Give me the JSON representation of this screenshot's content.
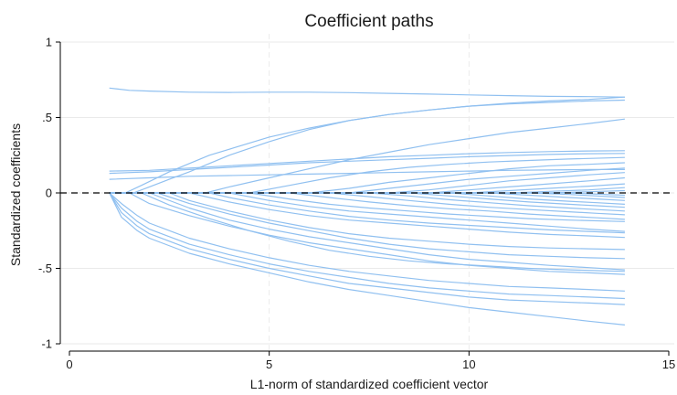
{
  "chart_data": {
    "type": "line",
    "title": "Coefficient paths",
    "xlabel": "L1-norm of standardized coefficient vector",
    "ylabel": "Standardized coefficients",
    "xlim": [
      0,
      15
    ],
    "ylim": [
      -1,
      1
    ],
    "x_ticks": [
      0,
      5,
      10,
      15
    ],
    "y_ticks": [
      -1,
      -0.5,
      0,
      0.5,
      1
    ],
    "x_tick_labels": [
      "0",
      "5",
      "10",
      "15"
    ],
    "y_tick_labels": [
      "-1",
      "-.5",
      "0",
      ".5",
      "1"
    ],
    "grid": true,
    "reference_line_y": 0,
    "line_color": "#90c0f0",
    "series": [
      {
        "x": [
          1.0,
          1.5,
          2,
          3,
          4,
          5,
          6,
          7,
          8,
          9,
          10,
          11,
          12,
          13,
          13.9
        ],
        "y": [
          0.695,
          0.68,
          0.675,
          0.668,
          0.666,
          0.668,
          0.668,
          0.665,
          0.66,
          0.655,
          0.65,
          0.645,
          0.64,
          0.638,
          0.635
        ]
      },
      {
        "x": [
          1.0,
          1.4,
          1.8,
          2.5,
          3.5,
          5,
          6,
          7,
          8,
          9,
          10,
          11,
          12,
          13,
          13.9
        ],
        "y": [
          0,
          0,
          0.05,
          0.14,
          0.25,
          0.37,
          0.43,
          0.48,
          0.52,
          0.55,
          0.575,
          0.59,
          0.6,
          0.61,
          0.615
        ]
      },
      {
        "x": [
          1.0,
          1.6,
          2,
          2.5,
          3,
          4,
          5,
          6,
          7,
          8,
          9,
          10,
          11,
          12,
          13,
          13.9
        ],
        "y": [
          0,
          0,
          0.04,
          0.09,
          0.14,
          0.25,
          0.34,
          0.42,
          0.48,
          0.52,
          0.55,
          0.575,
          0.595,
          0.61,
          0.62,
          0.635
        ]
      },
      {
        "x": [
          1.0,
          3.4,
          4,
          5,
          6,
          7,
          8,
          9,
          10,
          11,
          12,
          13,
          13.9
        ],
        "y": [
          0,
          0,
          0.04,
          0.1,
          0.16,
          0.22,
          0.27,
          0.32,
          0.36,
          0.4,
          0.43,
          0.46,
          0.49
        ]
      },
      {
        "x": [
          1.0,
          2,
          3,
          4,
          5,
          6,
          7,
          8,
          9,
          10,
          11,
          12,
          13,
          13.9
        ],
        "y": [
          0.145,
          0.15,
          0.165,
          0.18,
          0.195,
          0.21,
          0.225,
          0.24,
          0.25,
          0.26,
          0.268,
          0.274,
          0.278,
          0.28
        ]
      },
      {
        "x": [
          1.0,
          2,
          3,
          4,
          5,
          6,
          7,
          8,
          9,
          10,
          11,
          12,
          13,
          13.9
        ],
        "y": [
          0.13,
          0.14,
          0.155,
          0.17,
          0.185,
          0.2,
          0.21,
          0.22,
          0.23,
          0.24,
          0.248,
          0.255,
          0.26,
          0.262
        ]
      },
      {
        "x": [
          1.0,
          2,
          3,
          4,
          5,
          6,
          7,
          8,
          9,
          10,
          11,
          12,
          13,
          13.9
        ],
        "y": [
          0.09,
          0.1,
          0.11,
          0.115,
          0.12,
          0.125,
          0.13,
          0.135,
          0.14,
          0.145,
          0.15,
          0.152,
          0.155,
          0.155
        ]
      },
      {
        "x": [
          1.0,
          4.5,
          5.5,
          6.5,
          7.5,
          8.5,
          9.5,
          10.5,
          11.5,
          12.5,
          13.9
        ],
        "y": [
          0,
          0,
          0.05,
          0.1,
          0.14,
          0.17,
          0.19,
          0.205,
          0.215,
          0.225,
          0.235
        ]
      },
      {
        "x": [
          1.0,
          6,
          7,
          8,
          9,
          10,
          11,
          12,
          13,
          13.9
        ],
        "y": [
          0,
          0,
          0.03,
          0.07,
          0.1,
          0.13,
          0.16,
          0.18,
          0.19,
          0.2
        ]
      },
      {
        "x": [
          1.0,
          7,
          8,
          9,
          10,
          11,
          12,
          13,
          13.9
        ],
        "y": [
          0,
          0,
          0.03,
          0.06,
          0.09,
          0.11,
          0.13,
          0.15,
          0.165
        ]
      },
      {
        "x": [
          1.0,
          8,
          9,
          10,
          11,
          12,
          13,
          13.9
        ],
        "y": [
          0,
          0,
          0.02,
          0.05,
          0.08,
          0.1,
          0.12,
          0.135
        ]
      },
      {
        "x": [
          1.0,
          9,
          10,
          11,
          12,
          13,
          13.9
        ],
        "y": [
          0,
          0,
          0.02,
          0.04,
          0.06,
          0.08,
          0.1
        ]
      },
      {
        "x": [
          1.0,
          10,
          11,
          12,
          13,
          13.9
        ],
        "y": [
          0,
          0,
          0.015,
          0.03,
          0.045,
          0.06
        ]
      },
      {
        "x": [
          1.0,
          11,
          12,
          13,
          13.9
        ],
        "y": [
          0,
          0,
          0.01,
          0.02,
          0.035
        ]
      },
      {
        "x": [
          1.0,
          12,
          13,
          13.9
        ],
        "y": [
          0,
          0,
          0.008,
          0.015
        ]
      },
      {
        "x": [
          1.0,
          12.5,
          13.2,
          13.9
        ],
        "y": [
          0,
          0,
          -0.008,
          -0.015
        ]
      },
      {
        "x": [
          1.0,
          11.5,
          12.5,
          13.2,
          13.9
        ],
        "y": [
          0,
          0,
          -0.01,
          -0.02,
          -0.03
        ]
      },
      {
        "x": [
          1.0,
          10.5,
          11.5,
          12.5,
          13.2,
          13.9
        ],
        "y": [
          0,
          0,
          -0.015,
          -0.03,
          -0.04,
          -0.05
        ]
      },
      {
        "x": [
          1.0,
          9.5,
          10.5,
          11.5,
          12.5,
          13.2,
          13.9
        ],
        "y": [
          0,
          0,
          -0.02,
          -0.04,
          -0.055,
          -0.065,
          -0.075
        ]
      },
      {
        "x": [
          1.0,
          8.5,
          9.5,
          10.5,
          11.5,
          12.5,
          13.2,
          13.9
        ],
        "y": [
          0,
          0,
          -0.02,
          -0.04,
          -0.06,
          -0.075,
          -0.085,
          -0.095
        ]
      },
      {
        "x": [
          1.0,
          7.5,
          8.5,
          9.5,
          10.5,
          11.5,
          12.5,
          13.2,
          13.9
        ],
        "y": [
          0,
          0,
          -0.02,
          -0.045,
          -0.065,
          -0.085,
          -0.1,
          -0.11,
          -0.12
        ]
      },
      {
        "x": [
          1.0,
          6.5,
          7.5,
          8.5,
          9.5,
          10.5,
          11.5,
          12.5,
          13.2,
          13.9
        ],
        "y": [
          0,
          0,
          -0.025,
          -0.05,
          -0.075,
          -0.095,
          -0.11,
          -0.125,
          -0.135,
          -0.145
        ]
      },
      {
        "x": [
          1.0,
          5.5,
          6.5,
          7.5,
          8.5,
          9.5,
          10.5,
          11.5,
          12.5,
          13.2,
          13.9
        ],
        "y": [
          0,
          0,
          -0.03,
          -0.06,
          -0.085,
          -0.105,
          -0.12,
          -0.14,
          -0.155,
          -0.165,
          -0.175
        ]
      },
      {
        "x": [
          1.0,
          4.5,
          5.5,
          6.5,
          7.5,
          8.5,
          9.5,
          10.5,
          11.5,
          12.5,
          13.9
        ],
        "y": [
          0,
          0,
          -0.04,
          -0.075,
          -0.1,
          -0.12,
          -0.14,
          -0.155,
          -0.17,
          -0.18,
          -0.19
        ]
      },
      {
        "x": [
          1.0,
          4,
          5,
          6,
          7,
          8,
          9,
          10,
          11,
          12,
          13,
          13.9
        ],
        "y": [
          0,
          0,
          -0.05,
          -0.09,
          -0.12,
          -0.14,
          -0.16,
          -0.18,
          -0.2,
          -0.22,
          -0.24,
          -0.255
        ]
      },
      {
        "x": [
          1.0,
          3.5,
          4,
          5,
          6,
          7,
          8,
          9,
          10,
          11,
          12,
          13,
          13.9
        ],
        "y": [
          0,
          0,
          -0.03,
          -0.08,
          -0.12,
          -0.155,
          -0.18,
          -0.2,
          -0.215,
          -0.23,
          -0.245,
          -0.255,
          -0.265
        ]
      },
      {
        "x": [
          1.0,
          3,
          4,
          5,
          6,
          7,
          8,
          9,
          10,
          11,
          12,
          13,
          13.9
        ],
        "y": [
          0,
          0,
          -0.06,
          -0.11,
          -0.15,
          -0.18,
          -0.2,
          -0.22,
          -0.24,
          -0.26,
          -0.275,
          -0.285,
          -0.295
        ]
      },
      {
        "x": [
          1.0,
          2.5,
          3,
          4,
          5,
          6,
          7,
          8,
          9,
          10,
          11,
          12,
          13,
          13.9
        ],
        "y": [
          0,
          0,
          -0.05,
          -0.12,
          -0.18,
          -0.23,
          -0.27,
          -0.3,
          -0.32,
          -0.34,
          -0.355,
          -0.365,
          -0.37,
          -0.375
        ]
      },
      {
        "x": [
          1.0,
          2.2,
          3,
          4,
          5,
          6,
          7,
          8,
          9,
          10,
          11,
          12,
          13,
          13.9
        ],
        "y": [
          0,
          0,
          -0.07,
          -0.14,
          -0.2,
          -0.25,
          -0.3,
          -0.34,
          -0.37,
          -0.39,
          -0.41,
          -0.42,
          -0.43,
          -0.435
        ]
      },
      {
        "x": [
          1.0,
          2,
          3,
          4,
          5,
          6,
          7,
          8,
          9,
          10,
          11,
          12,
          13,
          13.9
        ],
        "y": [
          0,
          0,
          -0.1,
          -0.18,
          -0.24,
          -0.29,
          -0.33,
          -0.37,
          -0.41,
          -0.44,
          -0.46,
          -0.48,
          -0.495,
          -0.51
        ]
      },
      {
        "x": [
          1.0,
          1.8,
          2.5,
          3.5,
          4.5,
          5.5,
          6.5,
          7.5,
          8.5,
          9.5,
          10.5,
          11.5,
          12.5,
          13.2,
          13.9
        ],
        "y": [
          0,
          0,
          -0.08,
          -0.17,
          -0.25,
          -0.32,
          -0.38,
          -0.42,
          -0.45,
          -0.47,
          -0.485,
          -0.5,
          -0.51,
          -0.515,
          -0.52
        ]
      },
      {
        "x": [
          1.0,
          1.5,
          2,
          3,
          4,
          5,
          6,
          7,
          8,
          9,
          10,
          11,
          12,
          13,
          13.9
        ],
        "y": [
          0,
          0,
          -0.07,
          -0.15,
          -0.22,
          -0.28,
          -0.33,
          -0.37,
          -0.41,
          -0.45,
          -0.48,
          -0.5,
          -0.52,
          -0.53,
          -0.54
        ]
      },
      {
        "x": [
          1.0,
          1.3,
          1.7,
          2,
          3,
          4,
          5,
          6,
          7,
          8,
          9,
          10,
          11,
          12,
          13,
          13.9
        ],
        "y": [
          0,
          -0.07,
          -0.15,
          -0.2,
          -0.3,
          -0.37,
          -0.43,
          -0.48,
          -0.52,
          -0.55,
          -0.58,
          -0.6,
          -0.62,
          -0.63,
          -0.64,
          -0.65
        ]
      },
      {
        "x": [
          1.0,
          1.3,
          1.7,
          2,
          3,
          4,
          5,
          6,
          7,
          8,
          9,
          10,
          11,
          12,
          13,
          13.9
        ],
        "y": [
          0,
          -0.1,
          -0.19,
          -0.24,
          -0.34,
          -0.41,
          -0.47,
          -0.52,
          -0.56,
          -0.6,
          -0.63,
          -0.65,
          -0.67,
          -0.68,
          -0.69,
          -0.7
        ]
      },
      {
        "x": [
          1.0,
          1.3,
          1.7,
          2,
          3,
          4,
          5,
          6,
          7,
          8,
          9,
          10,
          11,
          12,
          13,
          13.9
        ],
        "y": [
          0,
          -0.13,
          -0.22,
          -0.27,
          -0.37,
          -0.44,
          -0.5,
          -0.55,
          -0.6,
          -0.63,
          -0.66,
          -0.69,
          -0.71,
          -0.72,
          -0.73,
          -0.74
        ]
      },
      {
        "x": [
          1.0,
          1.3,
          1.7,
          2,
          3,
          4,
          5,
          6,
          7,
          8,
          9,
          10,
          11,
          12,
          13,
          13.9
        ],
        "y": [
          0,
          -0.16,
          -0.25,
          -0.3,
          -0.4,
          -0.47,
          -0.53,
          -0.59,
          -0.64,
          -0.68,
          -0.72,
          -0.76,
          -0.79,
          -0.82,
          -0.85,
          -0.875
        ]
      }
    ]
  }
}
